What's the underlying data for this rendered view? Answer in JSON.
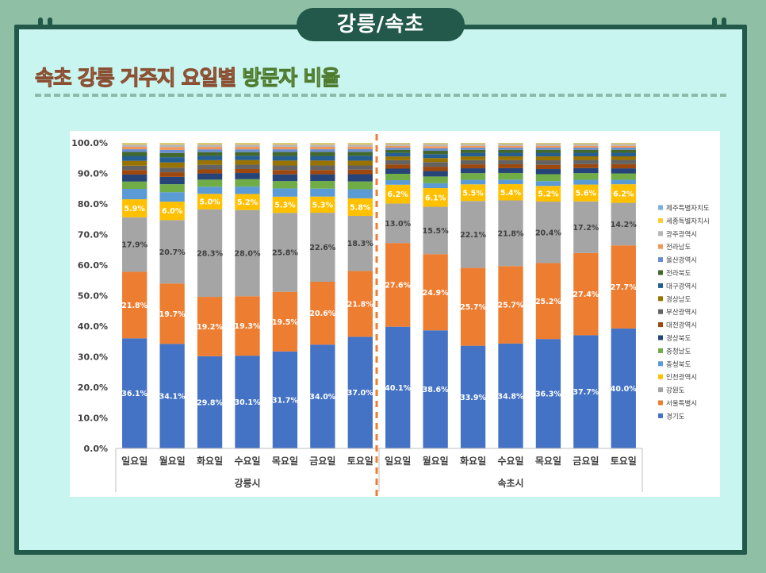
{
  "tab_title": "강릉/속초",
  "heading": {
    "part1": "속초 강릉 거주지 요일별",
    "part2": "방문자 비율"
  },
  "chart_data": {
    "type": "bar",
    "stacked": true,
    "title": "",
    "xlabel": "",
    "ylabel": "",
    "ylim": [
      0,
      100
    ],
    "y_ticks": [
      "0.0%",
      "10.0%",
      "20.0%",
      "30.0%",
      "40.0%",
      "50.0%",
      "60.0%",
      "70.0%",
      "80.0%",
      "90.0%",
      "100.0%"
    ],
    "groups": [
      {
        "label": "강릉시",
        "categories": [
          "일요일",
          "월요일",
          "화요일",
          "수요일",
          "목요일",
          "금요일",
          "토요일"
        ]
      },
      {
        "label": "속초시",
        "categories": [
          "일요일",
          "월요일",
          "화요일",
          "수요일",
          "목요일",
          "금요일",
          "토요일"
        ]
      }
    ],
    "series": [
      {
        "name": "경기도",
        "color": "#4472c4",
        "values": [
          36.1,
          34.1,
          29.8,
          30.1,
          31.7,
          34.0,
          37.0,
          40.1,
          38.6,
          33.9,
          34.8,
          36.3,
          37.7,
          40.0
        ]
      },
      {
        "name": "서울특별시",
        "color": "#ed7d31",
        "values": [
          21.8,
          19.7,
          19.2,
          19.3,
          19.5,
          20.6,
          21.8,
          27.6,
          24.9,
          25.7,
          25.7,
          25.2,
          27.4,
          27.7
        ]
      },
      {
        "name": "강원도",
        "color": "#a5a5a5",
        "values": [
          17.9,
          20.7,
          28.3,
          28.0,
          25.8,
          22.6,
          18.3,
          13.0,
          15.5,
          22.1,
          21.8,
          20.4,
          17.2,
          14.2
        ]
      },
      {
        "name": "인천광역시",
        "color": "#ffc000",
        "values": [
          5.9,
          6.0,
          5.0,
          5.2,
          5.3,
          5.3,
          5.8,
          6.2,
          6.1,
          5.5,
          5.4,
          5.2,
          5.6,
          6.2
        ]
      },
      {
        "name": "충청북도",
        "color": "#5b9bd5",
        "values": [
          3.4,
          3.1,
          2.3,
          2.4,
          2.7,
          2.6,
          3.0,
          1.5,
          1.6,
          1.5,
          1.5,
          1.6,
          1.6,
          1.5
        ]
      },
      {
        "name": "충청남도",
        "color": "#70ad47",
        "values": [
          2.4,
          2.6,
          2.3,
          2.4,
          2.4,
          2.5,
          2.6,
          2.1,
          2.2,
          2.2,
          2.2,
          2.3,
          2.2,
          2.1
        ]
      },
      {
        "name": "경상북도",
        "color": "#264478",
        "values": [
          2.3,
          2.4,
          2.0,
          2.0,
          2.2,
          2.2,
          2.4,
          1.7,
          1.8,
          1.6,
          1.6,
          1.7,
          1.7,
          1.7
        ]
      },
      {
        "name": "대전광역시",
        "color": "#9e480e",
        "values": [
          1.5,
          1.5,
          1.3,
          1.3,
          1.4,
          1.4,
          1.5,
          1.4,
          1.4,
          1.3,
          1.3,
          1.4,
          1.3,
          1.4
        ]
      },
      {
        "name": "부산광역시",
        "color": "#636363",
        "values": [
          1.4,
          1.5,
          1.5,
          1.4,
          1.5,
          1.5,
          1.4,
          1.4,
          1.5,
          1.4,
          1.4,
          1.5,
          1.4,
          1.4
        ]
      },
      {
        "name": "경상남도",
        "color": "#997300",
        "values": [
          1.6,
          1.7,
          1.5,
          1.5,
          1.6,
          1.6,
          1.6,
          1.2,
          1.3,
          1.2,
          1.2,
          1.3,
          1.2,
          1.2
        ]
      },
      {
        "name": "대구광역시",
        "color": "#255e91",
        "values": [
          1.6,
          1.7,
          1.4,
          1.4,
          1.5,
          1.5,
          1.6,
          1.2,
          1.3,
          1.2,
          1.2,
          1.2,
          1.2,
          1.2
        ]
      },
      {
        "name": "전라북도",
        "color": "#43682b",
        "values": [
          1.3,
          1.4,
          1.2,
          1.2,
          1.3,
          1.3,
          1.3,
          1.0,
          1.1,
          1.0,
          1.0,
          1.0,
          1.0,
          1.0
        ]
      },
      {
        "name": "울산광역시",
        "color": "#698ed0",
        "values": [
          0.9,
          1.0,
          0.9,
          0.9,
          0.9,
          0.9,
          0.9,
          0.7,
          0.8,
          0.7,
          0.7,
          0.7,
          0.7,
          0.7
        ]
      },
      {
        "name": "전라남도",
        "color": "#f1975a",
        "values": [
          0.8,
          0.9,
          0.8,
          0.8,
          0.8,
          0.8,
          0.8,
          0.6,
          0.7,
          0.6,
          0.6,
          0.6,
          0.6,
          0.6
        ]
      },
      {
        "name": "광주광역시",
        "color": "#b7b7b7",
        "values": [
          0.8,
          0.9,
          0.8,
          0.8,
          0.8,
          0.8,
          0.8,
          0.6,
          0.7,
          0.6,
          0.6,
          0.6,
          0.6,
          0.6
        ]
      },
      {
        "name": "세종특별자치시",
        "color": "#ffcd33",
        "values": [
          0.4,
          0.4,
          0.4,
          0.4,
          0.4,
          0.4,
          0.4,
          0.3,
          0.3,
          0.3,
          0.3,
          0.3,
          0.3,
          0.3
        ]
      },
      {
        "name": "제주특별자치도",
        "color": "#7cafdd",
        "values": [
          0.1,
          0.1,
          0.1,
          0.1,
          0.1,
          0.1,
          0.1,
          0.1,
          0.1,
          0.1,
          0.1,
          0.1,
          0.1,
          0.1
        ]
      }
    ],
    "labeled_series": [
      "경기도",
      "서울특별시",
      "강원도",
      "인천광역시"
    ],
    "legend_position": "right",
    "legend_order": [
      "제주특별자치도",
      "세종특별자치시",
      "광주광역시",
      "전라남도",
      "울산광역시",
      "전라북도",
      "대구광역시",
      "경상남도",
      "부산광역시",
      "대전광역시",
      "경상북도",
      "충청남도",
      "충청북도",
      "인천광역시",
      "강원도",
      "서울특별시",
      "경기도"
    ]
  }
}
